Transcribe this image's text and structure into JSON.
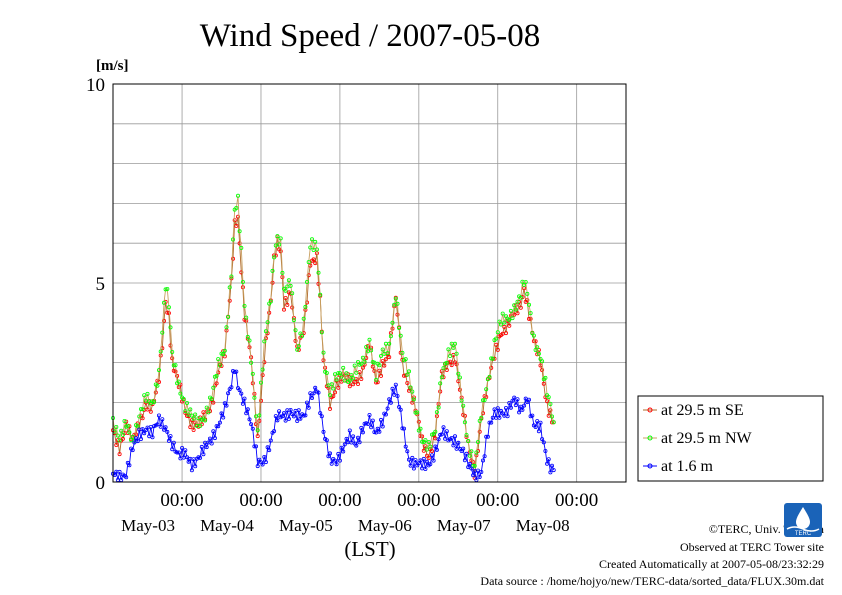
{
  "chart_data": {
    "type": "line",
    "title": "Wind Speed / 2007-05-08",
    "ylabel": "[m/s]",
    "xlabel": "(LST)",
    "ylim": [
      0,
      10
    ],
    "yticks": [
      0,
      5,
      10
    ],
    "xlim": [
      0,
      156
    ],
    "time_ticks": [
      {
        "x": 21,
        "time": "00:00",
        "date": "May-03"
      },
      {
        "x": 45,
        "time": "00:00",
        "date": "May-04"
      },
      {
        "x": 69,
        "time": "00:00",
        "date": "May-05"
      },
      {
        "x": 93,
        "time": "00:00",
        "date": "May-06"
      },
      {
        "x": 117,
        "time": "00:00",
        "date": "May-07"
      },
      {
        "x": 141,
        "time": "00:00",
        "date": "May-08"
      }
    ],
    "grid": true,
    "legend_position": "right",
    "series": [
      {
        "name": "at 29.5 m SE",
        "color": "#ff0000",
        "line_color": "#b06a2a",
        "anchors": [
          [
            0,
            1.3
          ],
          [
            2,
            0.9
          ],
          [
            4,
            1.4
          ],
          [
            6,
            1.0
          ],
          [
            8,
            1.5
          ],
          [
            10,
            2.0
          ],
          [
            12,
            1.8
          ],
          [
            14,
            2.6
          ],
          [
            15,
            3.5
          ],
          [
            16,
            4.6
          ],
          [
            17,
            4.2
          ],
          [
            18,
            3.0
          ],
          [
            20,
            2.4
          ],
          [
            22,
            1.8
          ],
          [
            24,
            1.5
          ],
          [
            26,
            1.4
          ],
          [
            28,
            1.6
          ],
          [
            30,
            2.0
          ],
          [
            32,
            2.8
          ],
          [
            34,
            3.2
          ],
          [
            36,
            5.0
          ],
          [
            37,
            6.5
          ],
          [
            38,
            6.7
          ],
          [
            39,
            5.4
          ],
          [
            40,
            4.2
          ],
          [
            42,
            3.0
          ],
          [
            44,
            1.1
          ],
          [
            46,
            3.2
          ],
          [
            48,
            4.5
          ],
          [
            49,
            5.5
          ],
          [
            50,
            6.0
          ],
          [
            51,
            5.8
          ],
          [
            52,
            4.5
          ],
          [
            54,
            4.8
          ],
          [
            56,
            3.2
          ],
          [
            58,
            3.8
          ],
          [
            60,
            5.6
          ],
          [
            62,
            5.6
          ],
          [
            63,
            4.5
          ],
          [
            64,
            3.0
          ],
          [
            66,
            2.0
          ],
          [
            68,
            2.5
          ],
          [
            70,
            2.6
          ],
          [
            72,
            2.5
          ],
          [
            74,
            2.6
          ],
          [
            76,
            2.8
          ],
          [
            78,
            3.4
          ],
          [
            80,
            2.5
          ],
          [
            82,
            3.0
          ],
          [
            84,
            3.2
          ],
          [
            86,
            4.6
          ],
          [
            88,
            3.0
          ],
          [
            90,
            2.4
          ],
          [
            92,
            1.8
          ],
          [
            94,
            1.0
          ],
          [
            96,
            0.7
          ],
          [
            98,
            1.2
          ],
          [
            100,
            2.6
          ],
          [
            102,
            3.0
          ],
          [
            104,
            3.2
          ],
          [
            106,
            2.0
          ],
          [
            108,
            0.9
          ],
          [
            110,
            0.3
          ],
          [
            112,
            1.6
          ],
          [
            114,
            2.4
          ],
          [
            116,
            3.2
          ],
          [
            118,
            3.8
          ],
          [
            120,
            3.9
          ],
          [
            122,
            4.2
          ],
          [
            124,
            4.5
          ],
          [
            125,
            4.9
          ],
          [
            126,
            4.5
          ],
          [
            128,
            3.5
          ],
          [
            130,
            3.0
          ],
          [
            132,
            2.0
          ],
          [
            134,
            1.5
          ]
        ]
      },
      {
        "name": "at 29.5 m NW",
        "color": "#00ff00",
        "line_color": "#c8a060",
        "anchors": [
          [
            0,
            1.5
          ],
          [
            2,
            1.0
          ],
          [
            4,
            1.5
          ],
          [
            6,
            1.1
          ],
          [
            8,
            1.6
          ],
          [
            10,
            2.1
          ],
          [
            12,
            2.0
          ],
          [
            14,
            2.8
          ],
          [
            15,
            3.8
          ],
          [
            16,
            4.9
          ],
          [
            17,
            4.4
          ],
          [
            18,
            3.2
          ],
          [
            20,
            2.5
          ],
          [
            22,
            1.9
          ],
          [
            24,
            1.6
          ],
          [
            26,
            1.5
          ],
          [
            28,
            1.7
          ],
          [
            30,
            2.1
          ],
          [
            32,
            2.9
          ],
          [
            34,
            3.4
          ],
          [
            36,
            5.3
          ],
          [
            37,
            6.8
          ],
          [
            38,
            7.0
          ],
          [
            39,
            5.7
          ],
          [
            40,
            4.4
          ],
          [
            42,
            3.2
          ],
          [
            44,
            1.2
          ],
          [
            46,
            3.4
          ],
          [
            48,
            4.7
          ],
          [
            49,
            5.8
          ],
          [
            50,
            6.2
          ],
          [
            51,
            6.0
          ],
          [
            52,
            4.7
          ],
          [
            54,
            5.0
          ],
          [
            56,
            3.4
          ],
          [
            58,
            4.0
          ],
          [
            60,
            5.9
          ],
          [
            62,
            5.9
          ],
          [
            63,
            4.7
          ],
          [
            64,
            3.2
          ],
          [
            66,
            2.2
          ],
          [
            68,
            2.6
          ],
          [
            70,
            2.8
          ],
          [
            72,
            2.6
          ],
          [
            74,
            2.8
          ],
          [
            76,
            3.0
          ],
          [
            78,
            3.6
          ],
          [
            80,
            2.7
          ],
          [
            82,
            3.2
          ],
          [
            84,
            3.4
          ],
          [
            86,
            4.8
          ],
          [
            88,
            3.2
          ],
          [
            90,
            2.6
          ],
          [
            92,
            1.9
          ],
          [
            94,
            1.1
          ],
          [
            96,
            0.8
          ],
          [
            98,
            1.3
          ],
          [
            100,
            2.8
          ],
          [
            102,
            3.2
          ],
          [
            104,
            3.4
          ],
          [
            106,
            2.2
          ],
          [
            108,
            1.0
          ],
          [
            110,
            0.3
          ],
          [
            112,
            1.7
          ],
          [
            114,
            2.6
          ],
          [
            116,
            3.5
          ],
          [
            118,
            4.0
          ],
          [
            120,
            4.1
          ],
          [
            122,
            4.4
          ],
          [
            124,
            4.7
          ],
          [
            125,
            5.0
          ],
          [
            126,
            4.7
          ],
          [
            128,
            3.6
          ],
          [
            130,
            3.2
          ],
          [
            132,
            2.2
          ],
          [
            134,
            1.5
          ]
        ]
      },
      {
        "name": "at 1.6 m",
        "color": "#0000ff",
        "line_color": "#0000ff",
        "anchors": [
          [
            0,
            0.2
          ],
          [
            2,
            0.2
          ],
          [
            4,
            0.2
          ],
          [
            6,
            0.8
          ],
          [
            8,
            1.2
          ],
          [
            10,
            1.4
          ],
          [
            12,
            1.2
          ],
          [
            14,
            1.5
          ],
          [
            16,
            1.4
          ],
          [
            18,
            1.0
          ],
          [
            20,
            0.6
          ],
          [
            22,
            0.7
          ],
          [
            24,
            0.5
          ],
          [
            26,
            0.6
          ],
          [
            28,
            0.8
          ],
          [
            30,
            1.1
          ],
          [
            32,
            1.5
          ],
          [
            34,
            1.8
          ],
          [
            36,
            2.4
          ],
          [
            37,
            2.9
          ],
          [
            38,
            2.5
          ],
          [
            40,
            2.0
          ],
          [
            42,
            1.4
          ],
          [
            44,
            0.5
          ],
          [
            46,
            0.6
          ],
          [
            48,
            1.0
          ],
          [
            50,
            1.6
          ],
          [
            52,
            1.7
          ],
          [
            54,
            1.8
          ],
          [
            56,
            1.6
          ],
          [
            58,
            1.6
          ],
          [
            60,
            2.2
          ],
          [
            62,
            2.4
          ],
          [
            64,
            1.2
          ],
          [
            66,
            0.6
          ],
          [
            68,
            0.6
          ],
          [
            70,
            0.8
          ],
          [
            72,
            1.1
          ],
          [
            74,
            1.0
          ],
          [
            76,
            1.4
          ],
          [
            78,
            1.5
          ],
          [
            80,
            1.2
          ],
          [
            82,
            1.6
          ],
          [
            84,
            2.0
          ],
          [
            86,
            2.3
          ],
          [
            88,
            1.5
          ],
          [
            90,
            0.6
          ],
          [
            92,
            0.4
          ],
          [
            94,
            0.4
          ],
          [
            96,
            0.5
          ],
          [
            98,
            0.8
          ],
          [
            100,
            1.2
          ],
          [
            102,
            1.1
          ],
          [
            104,
            1.1
          ],
          [
            106,
            0.8
          ],
          [
            108,
            0.4
          ],
          [
            110,
            0.2
          ],
          [
            112,
            0.3
          ],
          [
            114,
            1.2
          ],
          [
            116,
            1.7
          ],
          [
            118,
            1.8
          ],
          [
            120,
            1.8
          ],
          [
            122,
            2.0
          ],
          [
            124,
            1.8
          ],
          [
            126,
            2.2
          ],
          [
            128,
            1.4
          ],
          [
            130,
            1.3
          ],
          [
            132,
            0.6
          ],
          [
            134,
            0.3
          ]
        ]
      }
    ]
  },
  "credits": {
    "copyright": "©TERC, Univ. Tsukuba",
    "observed": "Observed at TERC Tower site",
    "created": "Created Automatically at 2007-05-08/23:32:29",
    "source": "Data source : /home/hojyo/new/TERC-data/sorted_data/FLUX.30m.dat",
    "logo_text": "TERC"
  }
}
